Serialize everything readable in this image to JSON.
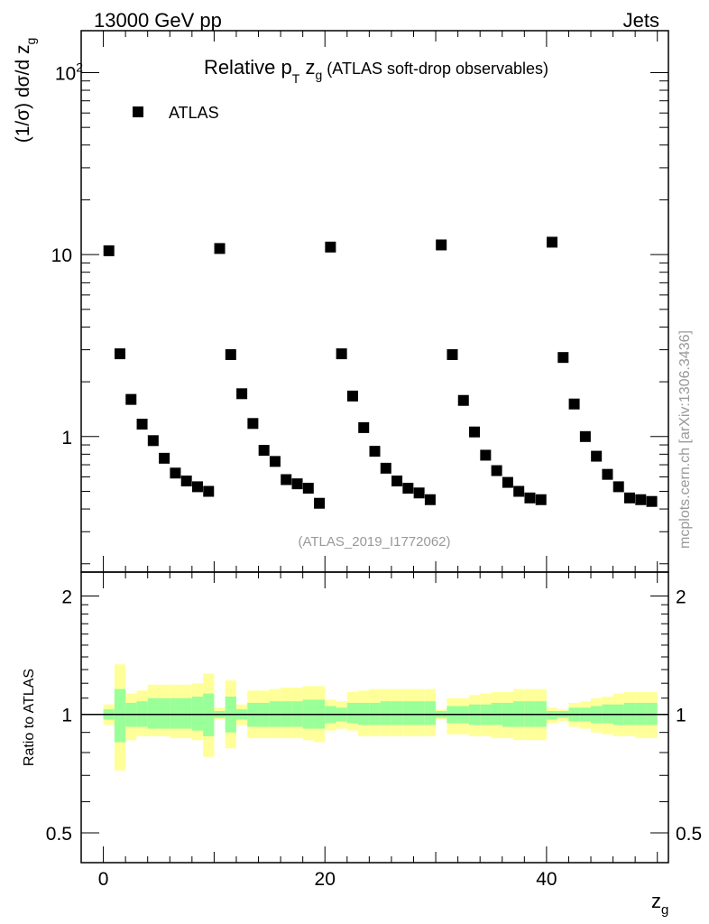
{
  "chart_data": {
    "type": "scatter",
    "header_left": "13000 GeV pp",
    "header_right": "Jets",
    "title_main": "Relative p",
    "title_sub_T": "T",
    "title_z": "z",
    "title_sub_g": "g",
    "title_rest": "(ATLAS soft-drop observables)",
    "ylabel_main": "(1/σ) dσ/d z",
    "ylabel_sub": "g",
    "ratio_ylabel": "Ratio to ATLAS",
    "xlabel_main": "z",
    "xlabel_sub": "g",
    "legend": [
      {
        "name": "ATLAS",
        "marker": "square",
        "color": "#000000"
      }
    ],
    "analysis_id": "(ATLAS_2019_I1772062)",
    "side_note": "mcplots.cern.ch [arXiv:1306.3436]",
    "colors": {
      "band_outer": "#ffff99",
      "band_inner": "#99ff99",
      "points": "#000000"
    },
    "xlim": [
      -2,
      51
    ],
    "ylim_main": [
      0.18,
      170
    ],
    "ylim_ratio": [
      0.42,
      2.3
    ],
    "yscale": "log",
    "x_ticks": [
      "0",
      "20",
      "40"
    ],
    "y_ticks_main": [
      {
        "value": 1,
        "label": "1"
      },
      {
        "value": 10,
        "label": "10"
      },
      {
        "value": 100,
        "label": "10",
        "exp": "2"
      }
    ],
    "y_ticks_ratio": [
      {
        "value": 0.5,
        "label": "0.5"
      },
      {
        "value": 1,
        "label": "1"
      },
      {
        "value": 2,
        "label": "2"
      }
    ],
    "x": [
      0.5,
      1.5,
      2.5,
      3.5,
      4.5,
      5.5,
      6.5,
      7.5,
      8.5,
      9.5,
      10.5,
      11.5,
      12.5,
      13.5,
      14.5,
      15.5,
      16.5,
      17.5,
      18.5,
      19.5,
      20.5,
      21.5,
      22.5,
      23.5,
      24.5,
      25.5,
      26.5,
      27.5,
      28.5,
      29.5,
      30.5,
      31.5,
      32.5,
      33.5,
      34.5,
      35.5,
      36.5,
      37.5,
      38.5,
      39.5,
      40.5,
      41.5,
      42.5,
      43.5,
      44.5,
      45.5,
      46.5,
      47.5,
      48.5,
      49.5
    ],
    "values": [
      10.5,
      2.85,
      1.6,
      1.17,
      0.95,
      0.76,
      0.63,
      0.57,
      0.53,
      0.5,
      10.8,
      2.82,
      1.72,
      1.18,
      0.84,
      0.73,
      0.58,
      0.55,
      0.52,
      0.43,
      11.0,
      2.85,
      1.67,
      1.12,
      0.83,
      0.67,
      0.57,
      0.52,
      0.49,
      0.45,
      11.3,
      2.82,
      1.58,
      1.06,
      0.79,
      0.65,
      0.56,
      0.5,
      0.46,
      0.45,
      11.7,
      2.72,
      1.51,
      1.0,
      0.78,
      0.62,
      0.53,
      0.46,
      0.45,
      0.44
    ],
    "ratio_band_outer": [
      [
        0.94,
        1.06
      ],
      [
        0.72,
        1.34
      ],
      [
        0.86,
        1.13
      ],
      [
        0.88,
        1.15
      ],
      [
        0.88,
        1.19
      ],
      [
        0.88,
        1.19
      ],
      [
        0.87,
        1.19
      ],
      [
        0.87,
        1.19
      ],
      [
        0.86,
        1.2
      ],
      [
        0.78,
        1.27
      ],
      [
        0.97,
        1.04
      ],
      [
        0.82,
        1.22
      ],
      [
        0.94,
        1.06
      ],
      [
        0.87,
        1.15
      ],
      [
        0.87,
        1.15
      ],
      [
        0.87,
        1.16
      ],
      [
        0.87,
        1.17
      ],
      [
        0.87,
        1.17
      ],
      [
        0.86,
        1.18
      ],
      [
        0.85,
        1.18
      ],
      [
        0.91,
        1.09
      ],
      [
        0.92,
        1.08
      ],
      [
        0.91,
        1.14
      ],
      [
        0.88,
        1.15
      ],
      [
        0.88,
        1.16
      ],
      [
        0.88,
        1.16
      ],
      [
        0.88,
        1.16
      ],
      [
        0.88,
        1.16
      ],
      [
        0.88,
        1.16
      ],
      [
        0.88,
        1.16
      ],
      [
        0.97,
        1.03
      ],
      [
        0.89,
        1.1
      ],
      [
        0.89,
        1.1
      ],
      [
        0.88,
        1.12
      ],
      [
        0.88,
        1.13
      ],
      [
        0.87,
        1.14
      ],
      [
        0.87,
        1.14
      ],
      [
        0.86,
        1.16
      ],
      [
        0.86,
        1.16
      ],
      [
        0.86,
        1.16
      ],
      [
        0.95,
        1.04
      ],
      [
        0.96,
        1.03
      ],
      [
        0.93,
        1.07
      ],
      [
        0.92,
        1.08
      ],
      [
        0.9,
        1.1
      ],
      [
        0.89,
        1.11
      ],
      [
        0.88,
        1.13
      ],
      [
        0.88,
        1.14
      ],
      [
        0.87,
        1.14
      ],
      [
        0.87,
        1.14
      ]
    ],
    "ratio_band_inner": [
      [
        0.97,
        1.03
      ],
      [
        0.85,
        1.16
      ],
      [
        0.93,
        1.07
      ],
      [
        0.93,
        1.08
      ],
      [
        0.92,
        1.1
      ],
      [
        0.92,
        1.1
      ],
      [
        0.92,
        1.1
      ],
      [
        0.92,
        1.1
      ],
      [
        0.91,
        1.11
      ],
      [
        0.88,
        1.13
      ],
      [
        0.98,
        1.02
      ],
      [
        0.9,
        1.11
      ],
      [
        0.97,
        1.03
      ],
      [
        0.93,
        1.07
      ],
      [
        0.93,
        1.07
      ],
      [
        0.93,
        1.08
      ],
      [
        0.93,
        1.08
      ],
      [
        0.93,
        1.08
      ],
      [
        0.92,
        1.09
      ],
      [
        0.92,
        1.09
      ],
      [
        0.95,
        1.05
      ],
      [
        0.96,
        1.04
      ],
      [
        0.95,
        1.07
      ],
      [
        0.94,
        1.07
      ],
      [
        0.94,
        1.07
      ],
      [
        0.94,
        1.08
      ],
      [
        0.94,
        1.08
      ],
      [
        0.94,
        1.08
      ],
      [
        0.94,
        1.08
      ],
      [
        0.94,
        1.08
      ],
      [
        0.98,
        1.02
      ],
      [
        0.95,
        1.05
      ],
      [
        0.95,
        1.05
      ],
      [
        0.94,
        1.06
      ],
      [
        0.94,
        1.06
      ],
      [
        0.94,
        1.07
      ],
      [
        0.93,
        1.07
      ],
      [
        0.93,
        1.08
      ],
      [
        0.93,
        1.08
      ],
      [
        0.93,
        1.08
      ],
      [
        0.97,
        1.02
      ],
      [
        0.98,
        1.02
      ],
      [
        0.96,
        1.04
      ],
      [
        0.96,
        1.04
      ],
      [
        0.95,
        1.05
      ],
      [
        0.95,
        1.06
      ],
      [
        0.94,
        1.06
      ],
      [
        0.94,
        1.07
      ],
      [
        0.94,
        1.07
      ],
      [
        0.94,
        1.07
      ]
    ]
  }
}
